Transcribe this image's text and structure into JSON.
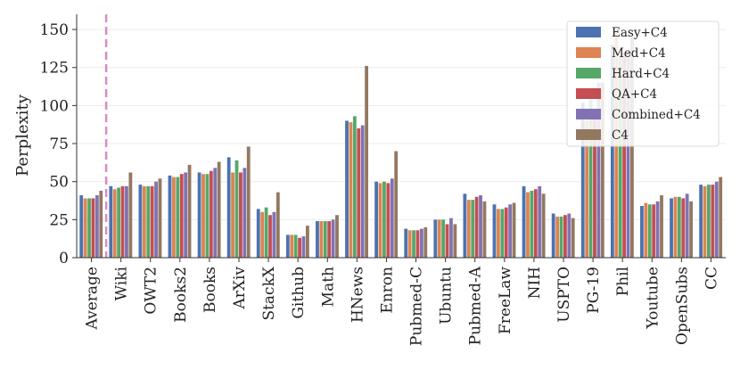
{
  "chart_data": {
    "type": "bar",
    "xlabel": "",
    "ylabel": "Perplexity",
    "ylim": [
      0,
      160
    ],
    "yticks": [
      0,
      25,
      50,
      75,
      100,
      125,
      150
    ],
    "grid": true,
    "legend_position": "top-right",
    "reference_line": {
      "category": "Average",
      "position": "right-of-category",
      "color": "#da8bc3",
      "style": "dashed"
    },
    "categories": [
      "Average",
      "Wiki",
      "OWT2",
      "Books2",
      "Books",
      "ArXiv",
      "StackX",
      "Github",
      "Math",
      "HNews",
      "Enron",
      "Pubmed-C",
      "Ubuntu",
      "Pubmed-A",
      "FreeLaw",
      "NIH",
      "USPTO",
      "PG-19",
      "Phil",
      "Youtube",
      "OpenSubs",
      "CC"
    ],
    "series": [
      {
        "name": "Easy+C4",
        "color": "#4c72b0",
        "values": [
          41,
          47,
          48,
          54,
          56,
          66,
          32,
          15,
          24,
          90,
          50,
          19,
          25,
          42,
          35,
          47,
          29,
          102,
          140,
          34,
          39,
          48
        ]
      },
      {
        "name": "Med+C4",
        "color": "#dd8452",
        "values": [
          39,
          45,
          47,
          53,
          55,
          56,
          30,
          15,
          24,
          89,
          49,
          18,
          25,
          38,
          32,
          43,
          27,
          90,
          148,
          36,
          40,
          47
        ]
      },
      {
        "name": "Hard+C4",
        "color": "#55a868",
        "values": [
          39,
          46,
          47,
          53,
          55,
          64,
          33,
          15,
          24,
          93,
          50,
          18,
          25,
          38,
          32,
          44,
          27,
          104,
          132,
          35,
          40,
          48
        ]
      },
      {
        "name": "QA+C4",
        "color": "#c44e52",
        "values": [
          39,
          47,
          47,
          55,
          57,
          56,
          28,
          13,
          24,
          85,
          49,
          18,
          22,
          40,
          33,
          45,
          28,
          95,
          135,
          35,
          39,
          48
        ]
      },
      {
        "name": "Combined+C4",
        "color": "#8172b3",
        "values": [
          41,
          47,
          50,
          56,
          59,
          59,
          30,
          14,
          25,
          87,
          52,
          19,
          26,
          41,
          35,
          47,
          29,
          115,
          135,
          37,
          42,
          50
        ]
      },
      {
        "name": "C4",
        "color": "#937860",
        "values": [
          44,
          56,
          52,
          61,
          63,
          73,
          43,
          21,
          28,
          126,
          70,
          20,
          22,
          37,
          36,
          42,
          26,
          115,
          145,
          41,
          37,
          53
        ]
      }
    ]
  }
}
